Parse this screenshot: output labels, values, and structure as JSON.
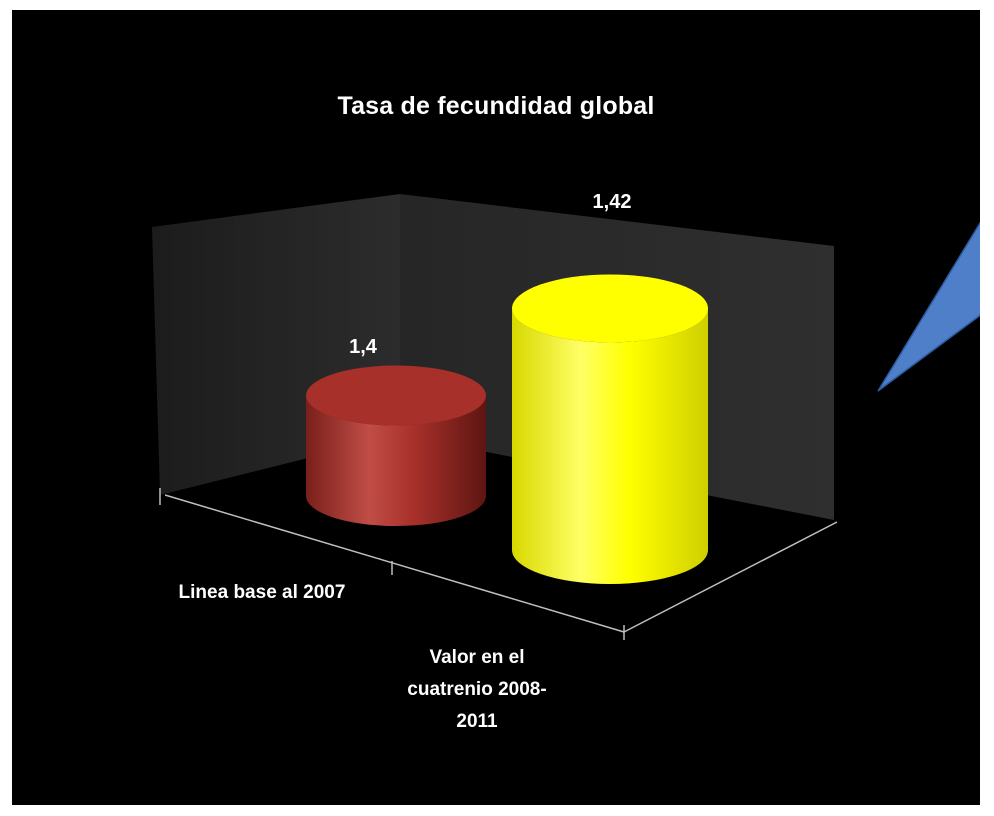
{
  "chart_data": {
    "type": "bar",
    "style": "3d-cylinder",
    "title": "Tasa de fecundidad global",
    "categories": [
      "Linea base al 2007",
      "Valor en el cuatrenio 2008-2011"
    ],
    "values": [
      1.4,
      1.42
    ],
    "data_labels": [
      "1,4",
      "1,42"
    ],
    "colors": [
      "#a8302a",
      "#ffff00"
    ],
    "background": "#000000",
    "grid": false,
    "legend": "none",
    "xlabel": "",
    "ylabel": ""
  },
  "decoration": {
    "shape": "blue-wedge",
    "color": "#4f7fc8"
  }
}
